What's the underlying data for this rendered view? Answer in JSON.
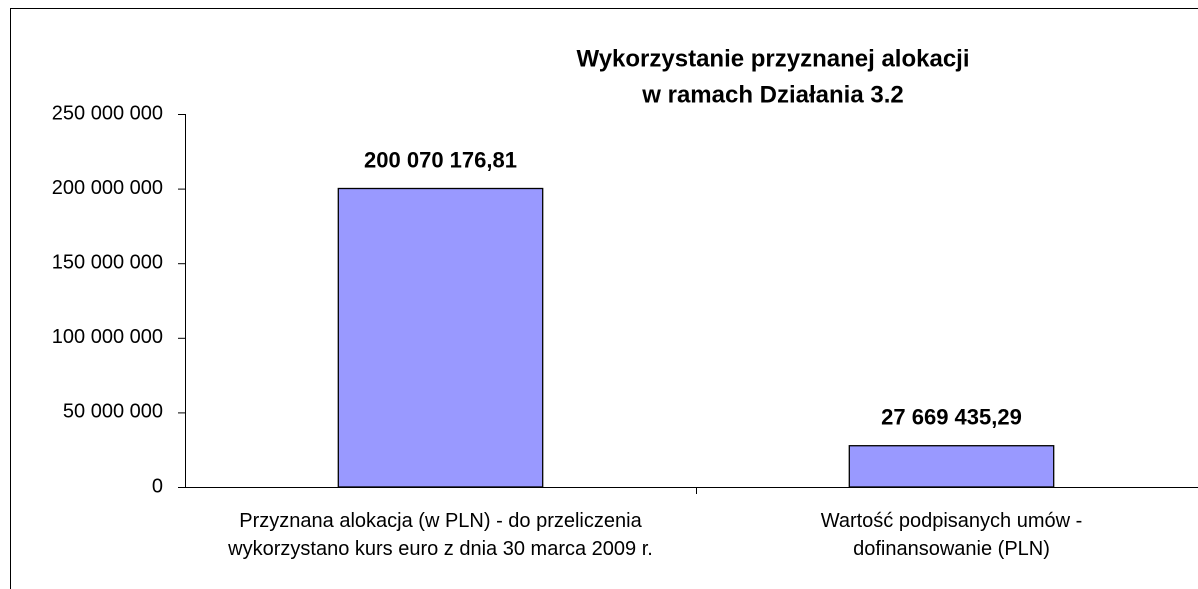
{
  "chart_data": {
    "type": "bar",
    "title": [
      "Wykorzystanie przyznanej alokacji",
      "w ramach Działania 3.2"
    ],
    "categories": [
      "Przyznana alokacja (w PLN) - do przeliczenia wykorzystano kurs euro z dnia 30 marca 2009 r.",
      "Wartość podpisanych umów - dofinansowanie (PLN)"
    ],
    "values": [
      200070176.81,
      27669435.29
    ],
    "value_labels": [
      "200 070 176,81",
      "27 669 435,29"
    ],
    "color": "#9999ff",
    "ylim": [
      0,
      250000000
    ],
    "yticks": [
      0,
      {
        "value": 50000000,
        "label": "50 000 000"
      },
      {
        "value": 100000000,
        "label": "100 000 000"
      },
      {
        "value": 150000000,
        "label": "150 000 000"
      },
      {
        "value": 200000000,
        "label": "200 000 000"
      },
      {
        "value": 250000000,
        "label": "250 000 000"
      }
    ],
    "grid": false
  }
}
